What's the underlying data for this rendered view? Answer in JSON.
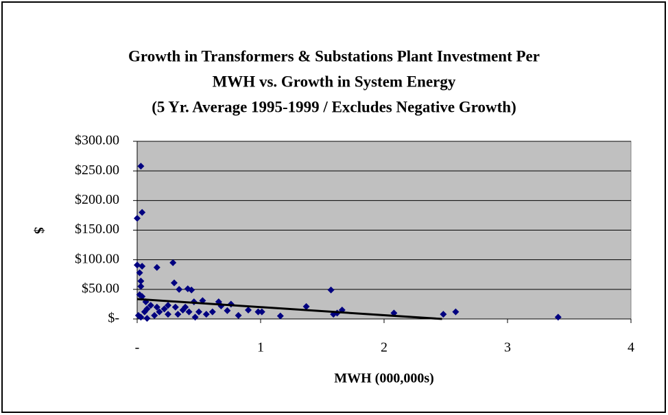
{
  "chart_data": {
    "type": "scatter",
    "title": [
      "Growth in Transformers & Substations Plant Investment Per",
      "MWH vs. Growth in System Energy",
      "(5 Yr. Average 1995-1999 / Excludes Negative Growth)"
    ],
    "x_label": "MWH (000,000s)",
    "y_label": "$",
    "color": "#000080",
    "x": [
      0.03,
      0.04,
      0.0,
      0.0,
      0.04,
      0.16,
      0.29,
      0.3,
      0.34,
      0.41,
      0.44,
      1.57,
      0.02,
      0.03,
      0.03,
      0.02,
      0.04,
      0.07,
      0.11,
      0.16,
      0.22,
      0.31,
      0.37,
      0.46,
      0.53,
      0.66,
      0.68,
      0.76,
      0.73,
      0.82,
      0.9,
      0.98,
      1.01,
      1.16,
      1.37,
      1.59,
      1.62,
      1.66,
      2.08,
      2.48,
      2.58,
      3.41,
      0.01,
      0.03,
      0.06,
      0.08,
      0.14,
      0.18,
      0.25,
      0.33,
      0.42,
      0.47,
      0.5,
      0.56,
      0.61,
      0.25,
      0.39,
      0.08
    ],
    "values": [
      258,
      180,
      170,
      91,
      89,
      87,
      95,
      61,
      50,
      51,
      49,
      49,
      78,
      64,
      55,
      41,
      38,
      29,
      23,
      20,
      17,
      20,
      15,
      29,
      31,
      29,
      22,
      25,
      14,
      6,
      15,
      12,
      12,
      5,
      21,
      8,
      10,
      15,
      10,
      8,
      12,
      3,
      6,
      3,
      12,
      1,
      6,
      12,
      8,
      8,
      12,
      3,
      12,
      8,
      12,
      23,
      20,
      17
    ],
    "trendline": {
      "x": [
        0,
        2.47
      ],
      "values": [
        33.6,
        0
      ]
    },
    "xlim": [
      0,
      4
    ],
    "xticks": [
      {
        "value": 0,
        "label": "-"
      },
      1,
      2,
      3,
      4
    ],
    "ylim": [
      0,
      300
    ],
    "yticks": [
      {
        "value": 0,
        "label": "$-"
      },
      {
        "value": 50,
        "label": "$50.00"
      },
      {
        "value": 100,
        "label": "$100.00"
      },
      {
        "value": 150,
        "label": "$150.00"
      },
      {
        "value": 200,
        "label": "$200.00"
      },
      {
        "value": 250,
        "label": "$250.00"
      },
      {
        "value": 300,
        "label": "$300.00"
      }
    ],
    "grid": true
  }
}
